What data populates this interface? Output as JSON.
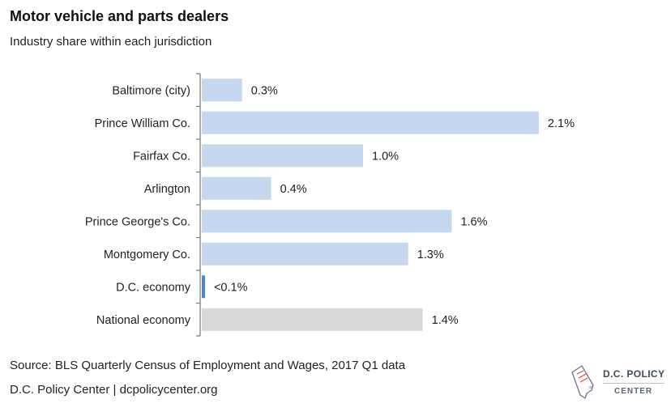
{
  "chart_data": {
    "type": "bar",
    "orientation": "horizontal",
    "title": "Motor vehicle and parts dealers",
    "subtitle": "Industry share within each jurisdiction",
    "categories": [
      "Baltimore (city)",
      "Prince William Co.",
      "Fairfax Co.",
      "Arlington",
      "Prince George's Co.",
      "Montgomery Co.",
      "D.C. economy",
      "National economy"
    ],
    "values": [
      0.25,
      2.09,
      1.0,
      0.43,
      1.55,
      1.28,
      0.02,
      1.37
    ],
    "labels": [
      "0.3%",
      "2.1%",
      "1.0%",
      "0.4%",
      "1.6%",
      "1.3%",
      "<0.1%",
      "1.4%"
    ],
    "colors": [
      "#c6d8f0",
      "#c6d8f0",
      "#c6d8f0",
      "#c6d8f0",
      "#c6d8f0",
      "#c6d8f0",
      "#4a86d8",
      "#d9d9d9"
    ],
    "xlabel": "",
    "ylabel": "",
    "xlim": [
      0,
      2.1
    ],
    "grid": false,
    "unit": "%"
  },
  "footer": {
    "source": "Source: BLS Quarterly Census of Employment and Wages, 2017 Q1 data",
    "credit": "D.C. Policy Center  |  dcpolicycenter.org"
  },
  "logo": {
    "line1": "D.C. POLICY",
    "line2": "CENTER"
  }
}
